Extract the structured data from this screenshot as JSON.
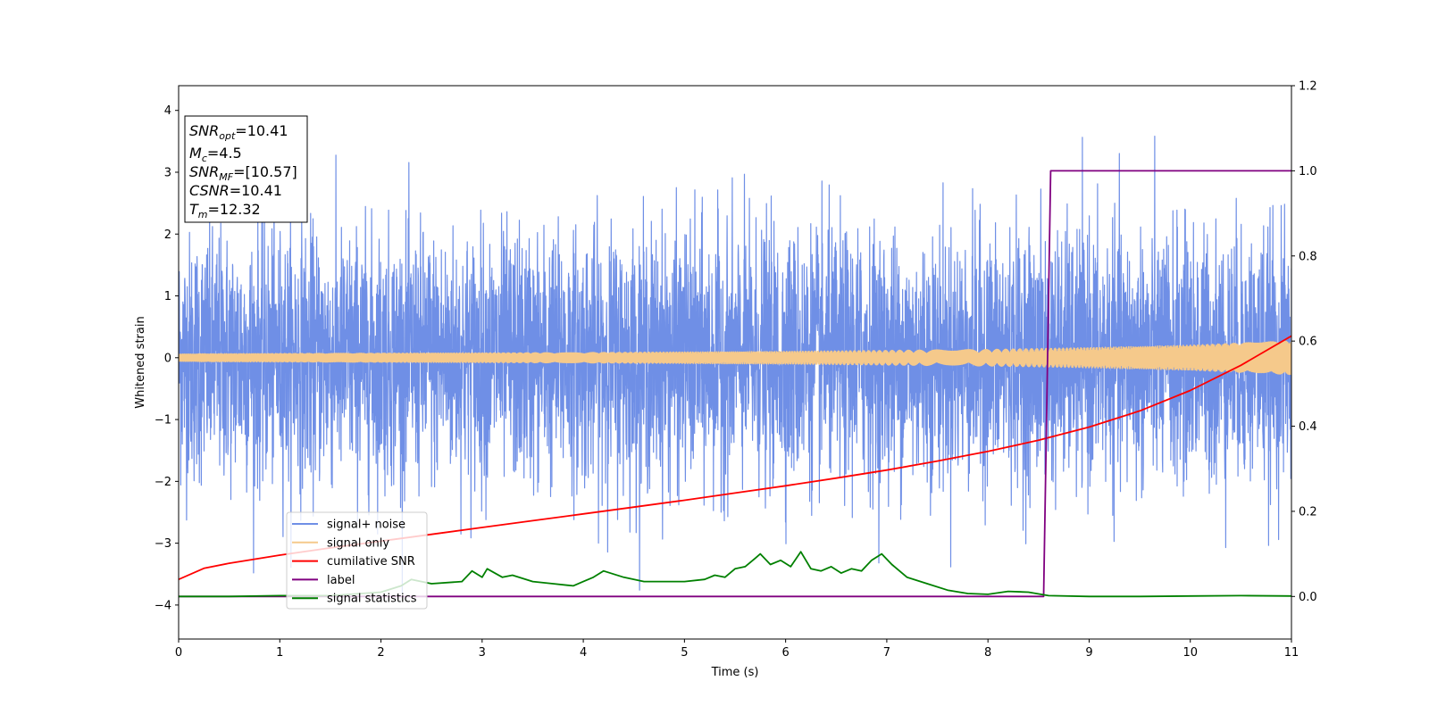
{
  "chart_data": {
    "type": "line",
    "xlabel": "Time (s)",
    "ylabel": "Whitened strain",
    "xlim": [
      0,
      11
    ],
    "ylim": [
      -4.55,
      4.4
    ],
    "y2lim": [
      -0.1,
      1.2
    ],
    "xticks": [
      0,
      1,
      2,
      3,
      4,
      5,
      6,
      7,
      8,
      9,
      10,
      11
    ],
    "yticks": [
      -4,
      -3,
      -2,
      -1,
      0,
      1,
      2,
      3,
      4
    ],
    "y2ticks": [
      "0.0",
      "0.2",
      "0.4",
      "0.6",
      "0.8",
      "1.0",
      "1.2"
    ],
    "legend_position": "lower-left",
    "grid": false,
    "annotation": {
      "lines": [
        {
          "base": "SNR",
          "sub": "opt",
          "value": "=10.41"
        },
        {
          "base": "M",
          "sub": "c",
          "value": "=4.5"
        },
        {
          "base": "SNR",
          "sub": "MF",
          "value": "=[10.57]"
        },
        {
          "base": "CSNR",
          "sub": "",
          "value": "=10.41"
        },
        {
          "base": "T",
          "sub": "m",
          "value": "=12.32"
        }
      ]
    },
    "series": [
      {
        "name": "signal+ noise",
        "color": "#6f8fe6",
        "axis": "left",
        "kind": "noise",
        "sigma": 1.0,
        "envelope_x": [
          0,
          11
        ],
        "envelope_y": [
          -3.8,
          4.0
        ]
      },
      {
        "name": "signal only",
        "color": "#f5c98b",
        "axis": "left",
        "kind": "chirp",
        "amplitude_x": [
          0,
          2,
          4,
          6,
          8,
          9,
          10,
          11
        ],
        "amplitude_y": [
          0.06,
          0.07,
          0.08,
          0.1,
          0.13,
          0.16,
          0.2,
          0.27
        ]
      },
      {
        "name": "cumilative SNR",
        "color": "#ff0000",
        "axis": "right",
        "x": [
          0,
          0.25,
          0.5,
          1,
          1.5,
          2,
          2.5,
          3,
          3.5,
          4,
          4.5,
          5,
          5.5,
          6,
          6.5,
          7,
          7.5,
          8,
          8.5,
          9,
          9.5,
          10,
          10.5,
          11
        ],
        "y": [
          0.04,
          0.066,
          0.078,
          0.097,
          0.114,
          0.13,
          0.146,
          0.162,
          0.178,
          0.194,
          0.21,
          0.226,
          0.243,
          0.26,
          0.278,
          0.297,
          0.318,
          0.341,
          0.367,
          0.398,
          0.436,
          0.484,
          0.543,
          0.612
        ]
      },
      {
        "name": "label",
        "color": "#800080",
        "axis": "right",
        "x": [
          0,
          8.55,
          8.62,
          11
        ],
        "y": [
          0,
          0,
          1,
          1
        ]
      },
      {
        "name": "signal statistics",
        "color": "#008000",
        "axis": "right",
        "x": [
          0,
          0.5,
          1,
          1.5,
          2,
          2.2,
          2.3,
          2.5,
          2.8,
          2.9,
          3.0,
          3.05,
          3.2,
          3.3,
          3.5,
          3.7,
          3.9,
          4.0,
          4.1,
          4.2,
          4.4,
          4.6,
          4.8,
          5.0,
          5.2,
          5.3,
          5.4,
          5.5,
          5.6,
          5.7,
          5.75,
          5.85,
          5.95,
          6.05,
          6.15,
          6.25,
          6.35,
          6.45,
          6.55,
          6.65,
          6.75,
          6.85,
          6.95,
          7.05,
          7.2,
          7.4,
          7.6,
          7.8,
          8.0,
          8.2,
          8.4,
          8.6,
          9.0,
          9.5,
          10,
          10.5,
          11
        ],
        "y": [
          0.0,
          0.0,
          0.002,
          0.002,
          0.01,
          0.025,
          0.04,
          0.03,
          0.035,
          0.06,
          0.045,
          0.065,
          0.045,
          0.05,
          0.035,
          0.03,
          0.025,
          0.035,
          0.045,
          0.06,
          0.045,
          0.035,
          0.035,
          0.035,
          0.04,
          0.05,
          0.045,
          0.065,
          0.07,
          0.09,
          0.1,
          0.075,
          0.085,
          0.07,
          0.105,
          0.065,
          0.06,
          0.07,
          0.055,
          0.065,
          0.06,
          0.085,
          0.1,
          0.075,
          0.045,
          0.03,
          0.015,
          0.007,
          0.005,
          0.012,
          0.01,
          0.002,
          0.0,
          0.0,
          0.001,
          0.002,
          0.001
        ]
      }
    ]
  }
}
